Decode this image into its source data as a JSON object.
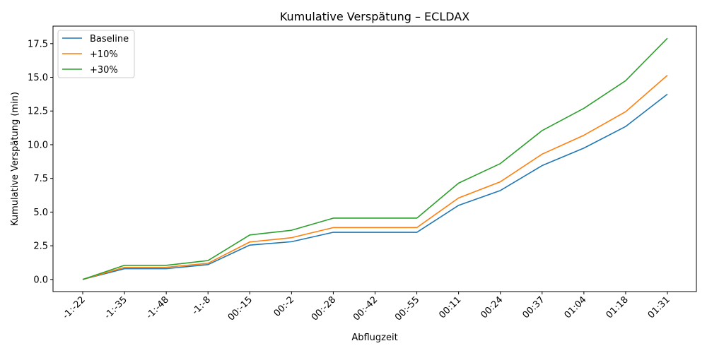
{
  "chart_data": {
    "type": "line",
    "title": "Kumulative Verspätung – ECLDAX",
    "xlabel": "Abflugzeit",
    "ylabel": "Kumulative Verspätung (min)",
    "categories": [
      "-1:-22",
      "-1:-35",
      "-1:-48",
      "-1:-8",
      "00:-15",
      "00:-2",
      "00:-28",
      "00:-42",
      "00:-55",
      "00:11",
      "00:24",
      "00:37",
      "01:04",
      "01:18",
      "01:31"
    ],
    "ylim": [
      -0.9,
      18.8
    ],
    "yticks": [
      0.0,
      2.5,
      5.0,
      7.5,
      10.0,
      12.5,
      15.0,
      17.5
    ],
    "ytick_labels": [
      "0.0",
      "2.5",
      "5.0",
      "7.5",
      "10.0",
      "12.5",
      "15.0",
      "17.5"
    ],
    "grid": false,
    "legend_position": "top-left",
    "series": [
      {
        "name": "Baseline",
        "color": "#1f77b4",
        "values": [
          0.0,
          0.8,
          0.8,
          1.1,
          2.55,
          2.8,
          3.5,
          3.5,
          3.5,
          5.5,
          6.6,
          8.45,
          9.75,
          11.35,
          13.75
        ]
      },
      {
        "name": "+10%",
        "color": "#ff7f0e",
        "values": [
          0.0,
          0.9,
          0.9,
          1.2,
          2.78,
          3.1,
          3.85,
          3.85,
          3.85,
          6.05,
          7.25,
          9.3,
          10.7,
          12.45,
          15.15
        ]
      },
      {
        "name": "+30%",
        "color": "#2ca02c",
        "values": [
          0.0,
          1.05,
          1.05,
          1.4,
          3.3,
          3.65,
          4.55,
          4.55,
          4.55,
          7.15,
          8.6,
          11.05,
          12.7,
          14.75,
          17.9
        ]
      }
    ]
  }
}
